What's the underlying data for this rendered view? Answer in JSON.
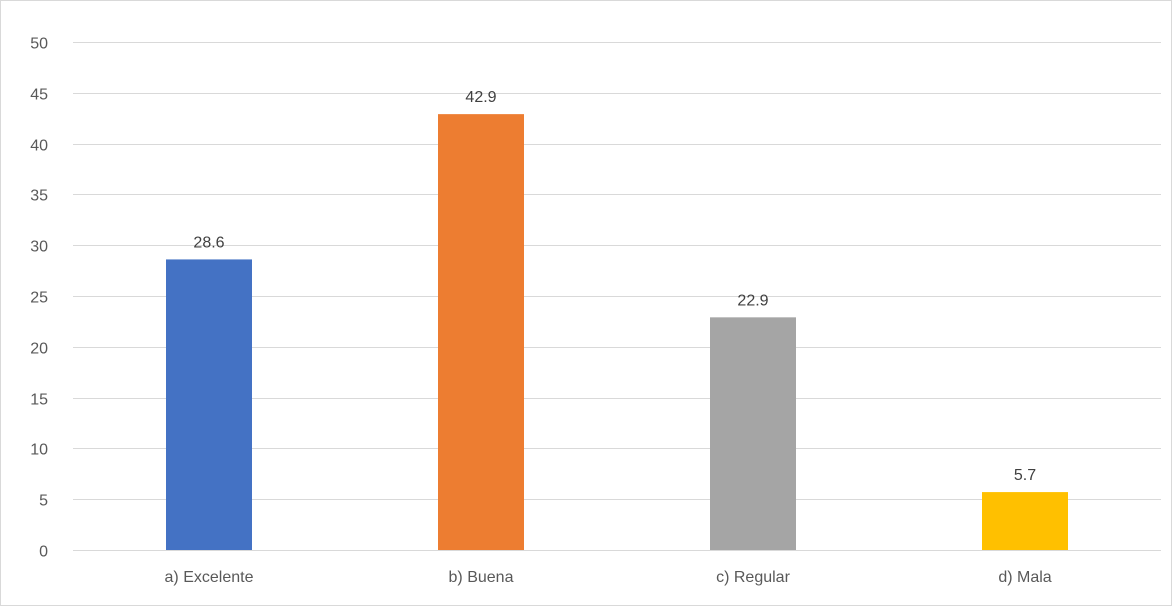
{
  "chart_data": {
    "type": "bar",
    "title": "",
    "xlabel": "",
    "ylabel": "",
    "categories": [
      "a) Excelente",
      "b) Buena",
      "c) Regular",
      "d) Mala"
    ],
    "values": [
      28.6,
      42.9,
      22.9,
      5.7
    ],
    "value_labels": [
      "28.6",
      "42.9",
      "22.9",
      "5.7"
    ],
    "colors": [
      "#4472c4",
      "#ed7d31",
      "#a5a5a5",
      "#ffc000"
    ],
    "ylim": [
      0,
      50
    ],
    "yticks": [
      0,
      5,
      10,
      15,
      20,
      25,
      30,
      35,
      40,
      45,
      50
    ],
    "grid": true,
    "legend": "none"
  }
}
